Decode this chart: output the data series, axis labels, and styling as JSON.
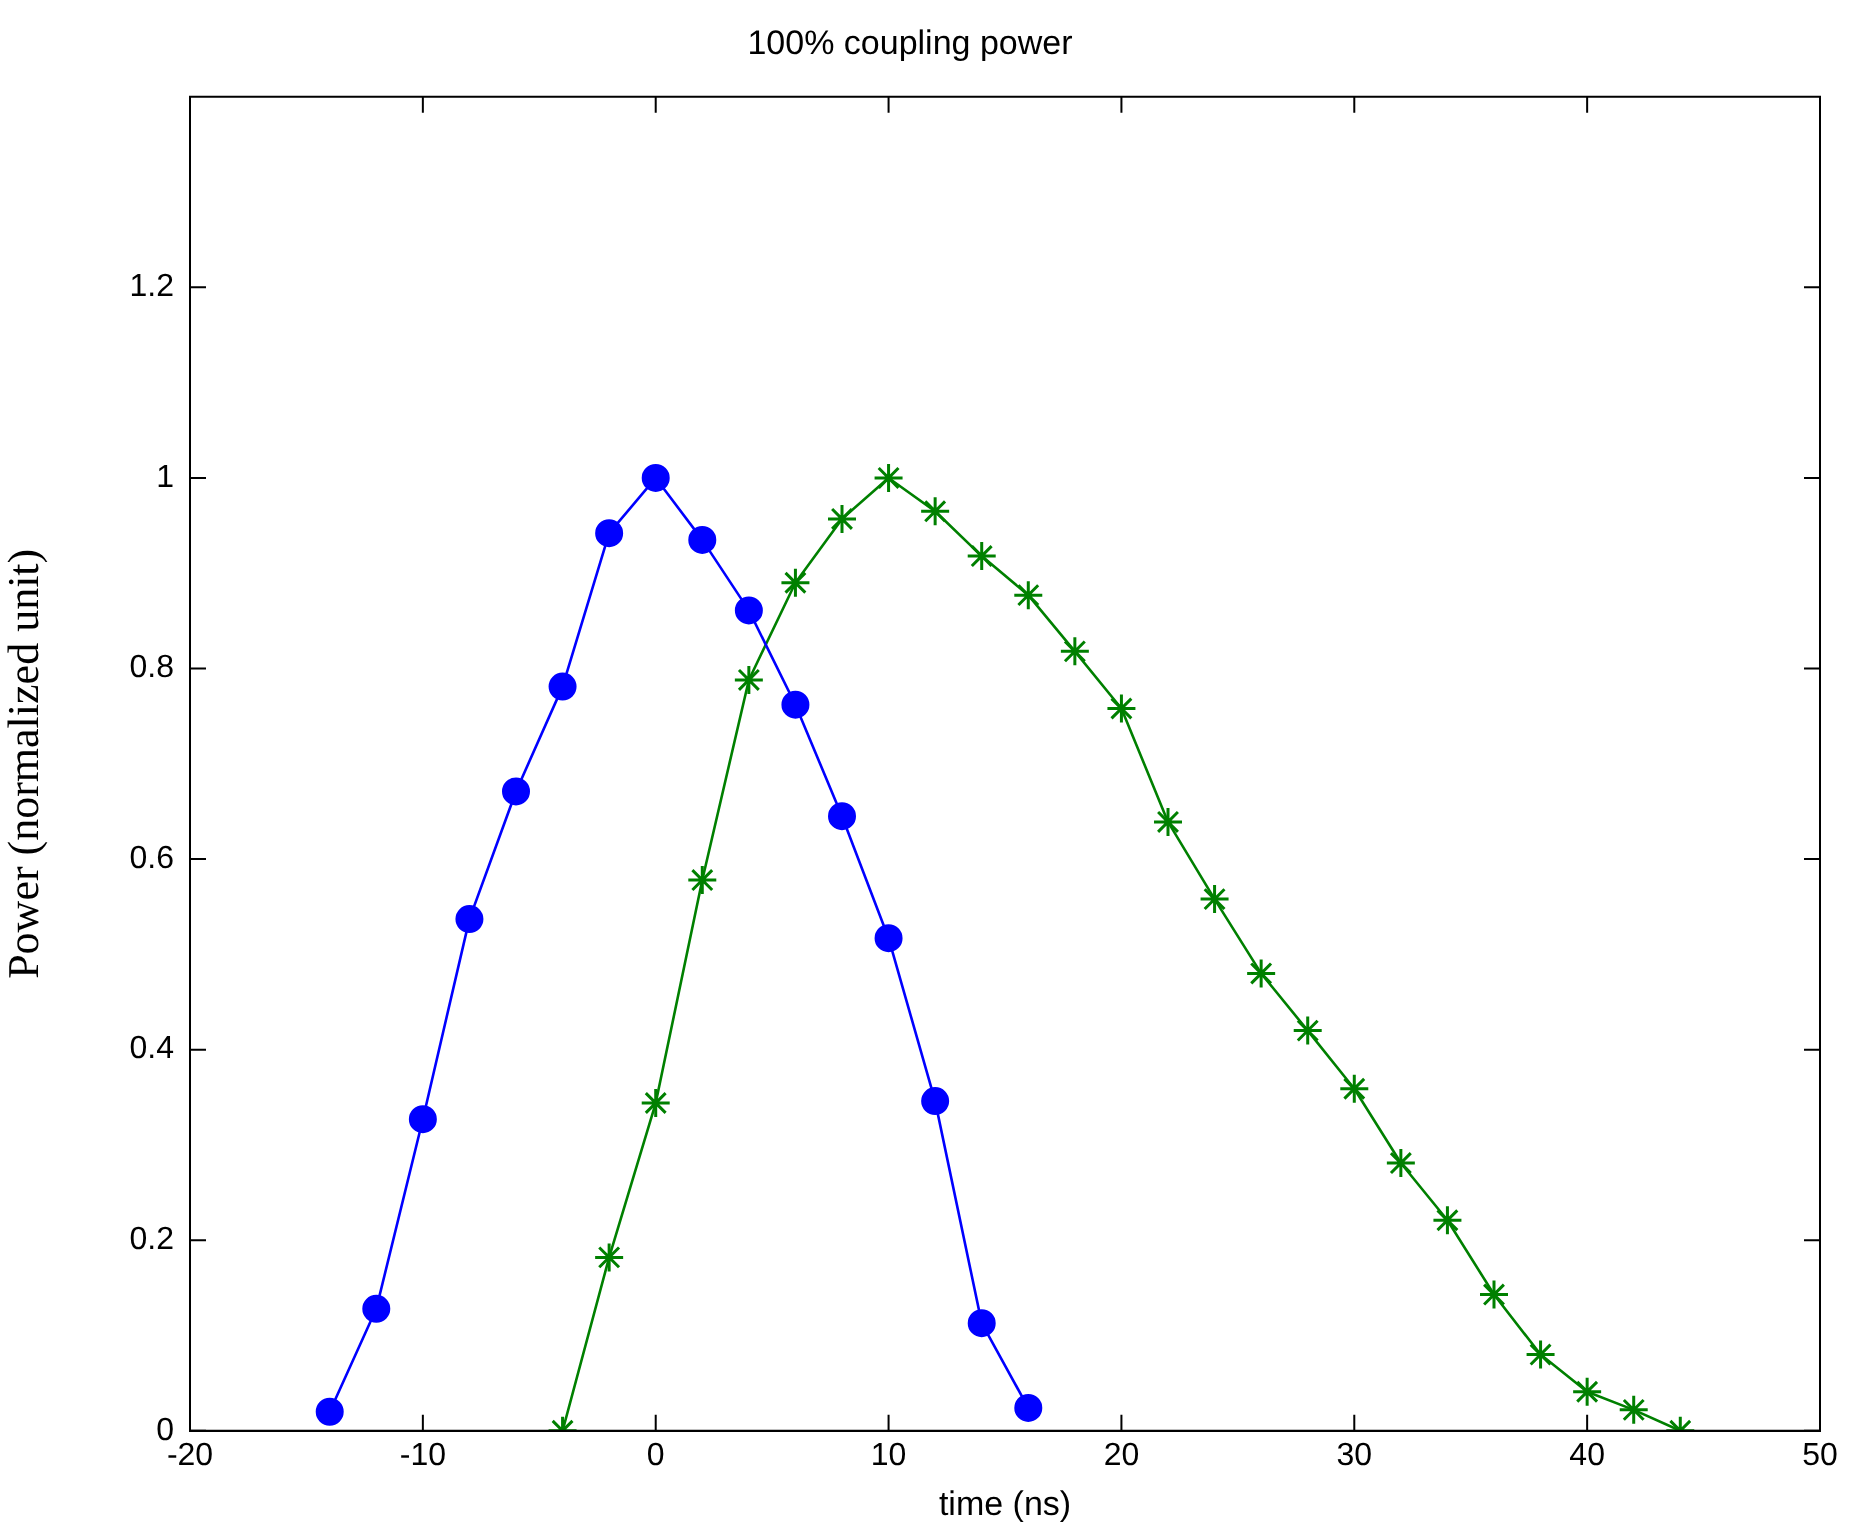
{
  "chart_data": {
    "type": "line",
    "title": "100% coupling power",
    "xlabel": "time (ns)",
    "ylabel": "Power (normalized unit)",
    "legend": false,
    "grid": false,
    "xlim": [
      -20,
      50
    ],
    "xticks": [
      -20,
      -10,
      0,
      10,
      20,
      30,
      40,
      50
    ],
    "ylim": [
      0,
      1.4
    ],
    "yticks": [
      0,
      0.2,
      0.4,
      0.6,
      0.8,
      1,
      1.2
    ],
    "series": [
      {
        "color": "#0000ff",
        "marker": "circle",
        "x": [
          -14,
          -12,
          -10,
          -8,
          -6,
          -4,
          -2,
          0,
          2,
          4,
          6,
          8,
          10,
          12,
          14,
          16
        ],
        "values": [
          0.02,
          0.128,
          0.327,
          0.537,
          0.671,
          0.781,
          0.942,
          1,
          0.935,
          0.861,
          0.762,
          0.645,
          0.517,
          0.346,
          0.113,
          0.024
        ]
      },
      {
        "color": "#008000",
        "marker": "cross",
        "x": [
          -4,
          -2,
          0,
          2,
          4,
          6,
          8,
          10,
          12,
          14,
          16,
          18,
          20,
          22,
          24,
          26,
          28,
          30,
          32,
          34,
          36,
          38,
          40,
          42,
          44
        ],
        "values": [
          0,
          0.182,
          0.344,
          0.578,
          0.788,
          0.89,
          0.957,
          1,
          0.965,
          0.918,
          0.877,
          0.818,
          0.758,
          0.639,
          0.558,
          0.48,
          0.42,
          0.359,
          0.281,
          0.221,
          0.143,
          0.08,
          0.041,
          0.022,
          0
        ]
      }
    ]
  }
}
